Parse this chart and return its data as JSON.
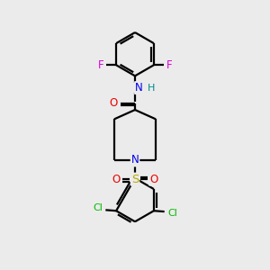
{
  "background_color": "#ebebeb",
  "bond_color": "#000000",
  "atom_colors": {
    "F": "#dd00dd",
    "Cl": "#00bb00",
    "N": "#0000ee",
    "O": "#ee0000",
    "S": "#bbaa00",
    "H": "#008888",
    "C": "#000000"
  },
  "figsize": [
    3.0,
    3.0
  ],
  "dpi": 100
}
